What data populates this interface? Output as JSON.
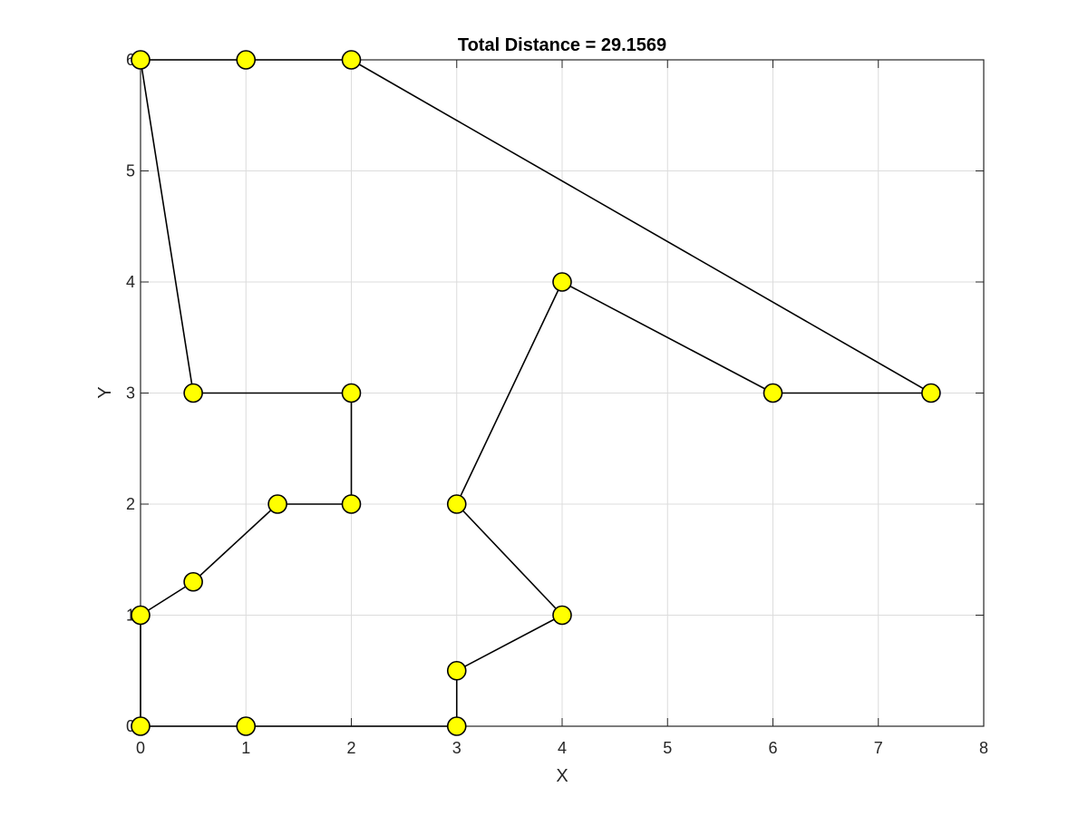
{
  "chart_data": {
    "type": "line",
    "title": "Total Distance = 29.1569",
    "xlabel": "X",
    "ylabel": "Y",
    "xlim": [
      0,
      8
    ],
    "ylim": [
      0,
      6
    ],
    "xticks": [
      "0",
      "1",
      "2",
      "3",
      "4",
      "5",
      "6",
      "7",
      "8"
    ],
    "yticks": [
      "0",
      "1",
      "2",
      "3",
      "4",
      "5",
      "6"
    ],
    "grid": true,
    "marker": "circle",
    "marker_color": "#ffff00",
    "line_color": "#000000",
    "route": [
      {
        "x": 0,
        "y": 6
      },
      {
        "x": 1,
        "y": 6
      },
      {
        "x": 2,
        "y": 6
      },
      {
        "x": 7.5,
        "y": 3
      },
      {
        "x": 6,
        "y": 3
      },
      {
        "x": 4,
        "y": 4
      },
      {
        "x": 3,
        "y": 2
      },
      {
        "x": 4,
        "y": 1
      },
      {
        "x": 3,
        "y": 0.5
      },
      {
        "x": 3,
        "y": 0
      },
      {
        "x": 1,
        "y": 0
      },
      {
        "x": 0,
        "y": 0
      },
      {
        "x": 0,
        "y": 1
      },
      {
        "x": 0.5,
        "y": 1.3
      },
      {
        "x": 1.3,
        "y": 2
      },
      {
        "x": 2,
        "y": 2
      },
      {
        "x": 2,
        "y": 3
      },
      {
        "x": 0.5,
        "y": 3
      },
      {
        "x": 0,
        "y": 6
      }
    ]
  }
}
